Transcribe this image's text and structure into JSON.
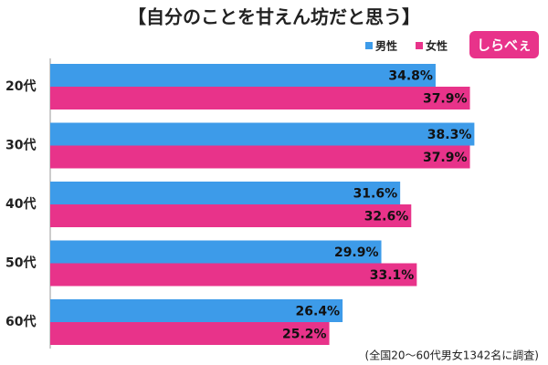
{
  "chart_data": {
    "type": "hbar",
    "title": "【自分のことを甘えん坊だと思う】",
    "logo": "しらべぇ",
    "note": "(全国20～60代男女1342名に調査)",
    "categories": [
      "20代",
      "30代",
      "40代",
      "50代",
      "60代"
    ],
    "series": [
      {
        "name": "男性",
        "color": "#3d9be9",
        "values": [
          34.8,
          38.3,
          31.6,
          29.9,
          26.4
        ],
        "value_labels": [
          "34.8%",
          "38.3%",
          "31.6%",
          "29.9%",
          "26.4%"
        ]
      },
      {
        "name": "女性",
        "color": "#e8338a",
        "values": [
          37.9,
          37.9,
          32.6,
          33.1,
          25.2
        ],
        "value_labels": [
          "37.9%",
          "37.9%",
          "32.6%",
          "33.1%",
          "25.2%"
        ]
      }
    ],
    "xlim": [
      0,
      40
    ],
    "legend": "top-right"
  }
}
